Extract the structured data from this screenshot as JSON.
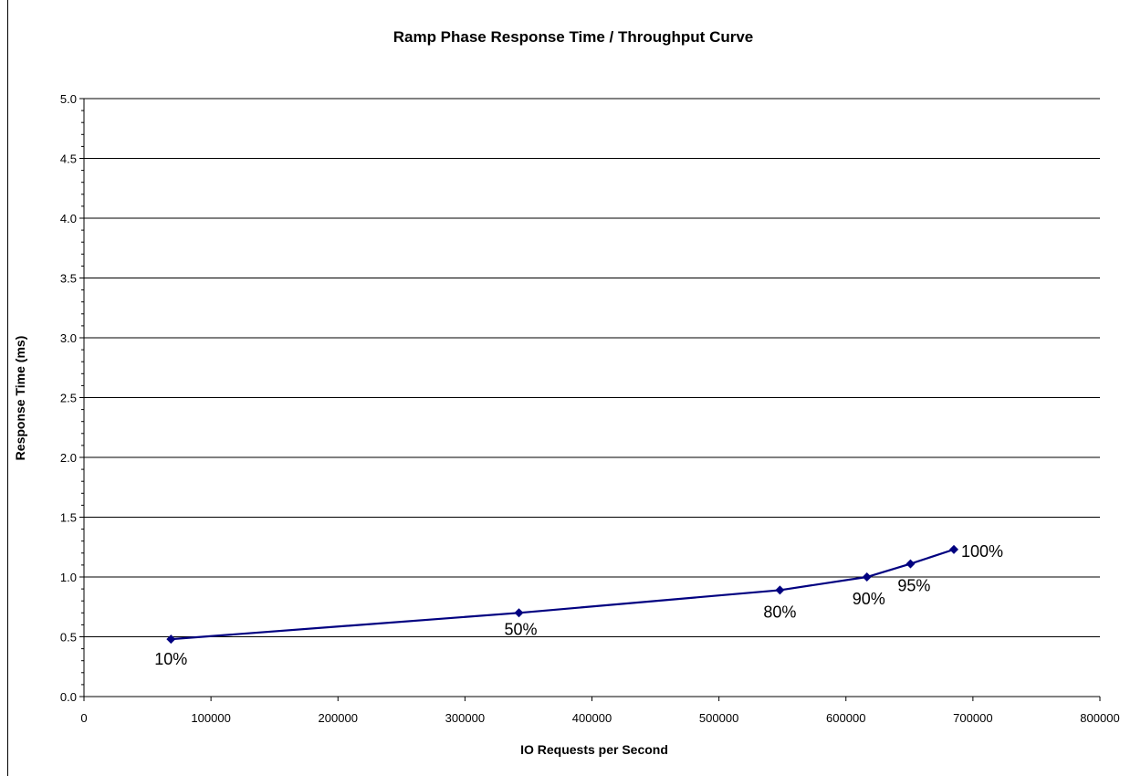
{
  "chart_data": {
    "type": "line",
    "title": "Ramp Phase Response Time / Throughput Curve",
    "xlabel": "IO Requests per Second",
    "ylabel": "Response Time (ms)",
    "xlim": [
      0,
      800000
    ],
    "ylim": [
      0,
      5.0
    ],
    "x_ticks": [
      "0",
      "100000",
      "200000",
      "300000",
      "400000",
      "500000",
      "600000",
      "700000",
      "800000"
    ],
    "y_ticks": [
      "0.0",
      "0.5",
      "1.0",
      "1.5",
      "2.0",
      "2.5",
      "3.0",
      "3.5",
      "4.0",
      "4.5",
      "5.0"
    ],
    "grid": "horizontal",
    "series": [
      {
        "color": "#000080",
        "points": [
          {
            "x": 68500,
            "y": 0.48,
            "label": "10%"
          },
          {
            "x": 342500,
            "y": 0.7,
            "label": "50%"
          },
          {
            "x": 548000,
            "y": 0.89,
            "label": "80%"
          },
          {
            "x": 616500,
            "y": 1.0,
            "label": "90%"
          },
          {
            "x": 650800,
            "y": 1.11,
            "label": "95%"
          },
          {
            "x": 685000,
            "y": 1.23,
            "label": "100%"
          }
        ]
      }
    ]
  }
}
